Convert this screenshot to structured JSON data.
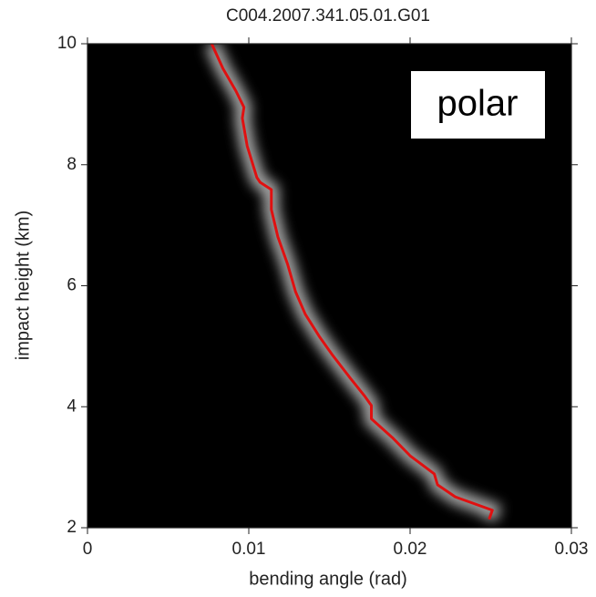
{
  "chart_data": {
    "type": "line",
    "title": "C004.2007.341.05.01.G01",
    "xlabel": "bending angle (rad)",
    "ylabel": "impact height (km)",
    "annotation": "polar",
    "xlim": [
      0,
      0.03
    ],
    "xticks": [
      0,
      0.01,
      0.02,
      0.03
    ],
    "ylim": [
      2,
      10
    ],
    "yticks": [
      2,
      4,
      6,
      8,
      10
    ],
    "background": "#000000",
    "series": [
      {
        "color": "#e01010",
        "x": [
          0.0077,
          0.0084,
          0.0092,
          0.0097,
          0.0096,
          0.0099,
          0.0105,
          0.0107,
          0.0114,
          0.0114,
          0.0118,
          0.0124,
          0.0129,
          0.0135,
          0.0144,
          0.0152,
          0.0163,
          0.0172,
          0.0176,
          0.0176,
          0.0189,
          0.02,
          0.0215,
          0.0217,
          0.0228,
          0.0251,
          0.0249
        ],
        "values": [
          10,
          9.59,
          9.22,
          8.95,
          8.77,
          8.31,
          7.79,
          7.71,
          7.59,
          7.26,
          6.81,
          6.36,
          5.9,
          5.53,
          5.15,
          4.85,
          4.47,
          4.17,
          4.02,
          3.8,
          3.49,
          3.19,
          2.89,
          2.71,
          2.51,
          2.29,
          2.14
        ]
      }
    ]
  }
}
